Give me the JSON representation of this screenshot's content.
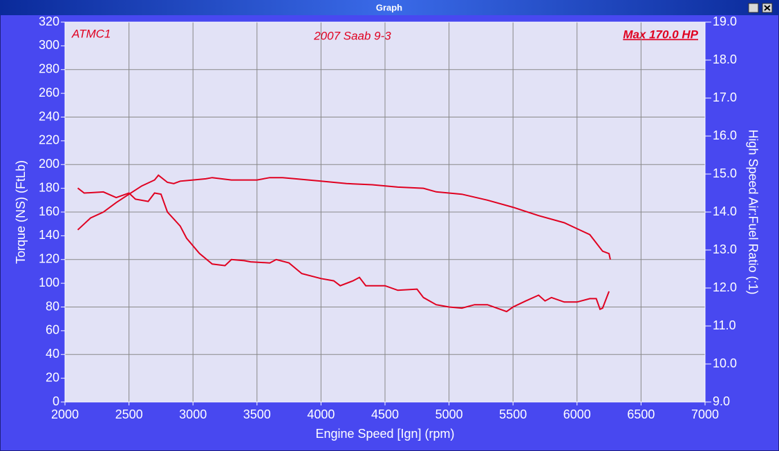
{
  "window": {
    "title": "Graph"
  },
  "chart_data": {
    "type": "line",
    "annotations": [
      "ATMC1",
      "2007 Saab 9-3",
      "Max 170.0 HP"
    ],
    "xlabel": "Engine Speed [Ign] (rpm)",
    "ylabel": "Torque (NS) (FtLb)",
    "y2label": "High Speed Air:Fuel Ratio (:1)",
    "xlim": [
      2000,
      7000
    ],
    "xticks": [
      2000,
      2500,
      3000,
      3500,
      4000,
      4500,
      5000,
      5500,
      6000,
      6500,
      7000
    ],
    "ylim": [
      0,
      320
    ],
    "yticks": [
      0,
      20,
      40,
      60,
      80,
      100,
      120,
      140,
      160,
      180,
      200,
      220,
      240,
      260,
      280,
      300,
      320
    ],
    "y2lim": [
      9,
      19
    ],
    "y2ticks": [
      {
        "value": 9,
        "label": "9.0"
      },
      {
        "value": 10,
        "label": "10.0"
      },
      {
        "value": 11,
        "label": "11.0"
      },
      {
        "value": 12,
        "label": "12.0"
      },
      {
        "value": 13,
        "label": "13.0"
      },
      {
        "value": 14,
        "label": "14.0"
      },
      {
        "value": 15,
        "label": "15.0"
      },
      {
        "value": 16,
        "label": "16.0"
      },
      {
        "value": 17,
        "label": "17.0"
      },
      {
        "value": 18,
        "label": "18.0"
      },
      {
        "value": 19,
        "label": "19.0"
      }
    ],
    "grid": true,
    "series": [
      {
        "color": "#e00020",
        "x": [
          2100,
          2150,
          2200,
          2300,
          2400,
          2500,
          2600,
          2700,
          2730,
          2800,
          2850,
          2900,
          3000,
          3100,
          3150,
          3300,
          3500,
          3600,
          3700,
          3800,
          4000,
          4200,
          4400,
          4600,
          4800,
          4900,
          5100,
          5300,
          5500,
          5700,
          5900,
          6000,
          6100,
          6150,
          6200,
          6250,
          6260
        ],
        "values": [
          145,
          150,
          155,
          160,
          168,
          175,
          182,
          187,
          191,
          185,
          184,
          186,
          187,
          188,
          189,
          187,
          187,
          189,
          189,
          188,
          186,
          184,
          183,
          181,
          180,
          177,
          175,
          170,
          164,
          157,
          151,
          146,
          141,
          134,
          127,
          125,
          120
        ]
      },
      {
        "color": "#e00020",
        "axis": "y2",
        "x": [
          2100,
          2150,
          2300,
          2400,
          2500,
          2550,
          2650,
          2700,
          2750,
          2800,
          2900,
          2950,
          3050,
          3150,
          3250,
          3300,
          3400,
          3450,
          3600,
          3650,
          3750,
          3850,
          4000,
          4100,
          4150,
          4250,
          4300,
          4350,
          4500,
          4600,
          4750,
          4800,
          4900,
          5000,
          5100,
          5200,
          5300,
          5400,
          5450,
          5500,
          5600,
          5700,
          5750,
          5800,
          5900,
          6000,
          6100,
          6150,
          6180,
          6200,
          6250
        ],
        "values": [
          14.63,
          14.5,
          14.53,
          14.38,
          14.5,
          14.34,
          14.28,
          14.5,
          14.47,
          14.0,
          13.63,
          13.31,
          12.91,
          12.63,
          12.59,
          12.75,
          12.72,
          12.69,
          12.66,
          12.75,
          12.66,
          12.38,
          12.25,
          12.19,
          12.06,
          12.19,
          12.28,
          12.06,
          12.06,
          11.94,
          11.97,
          11.75,
          11.56,
          11.5,
          11.47,
          11.56,
          11.56,
          11.44,
          11.38,
          11.5,
          11.66,
          11.81,
          11.66,
          11.75,
          11.63,
          11.63,
          11.72,
          11.72,
          11.44,
          11.47,
          11.91
        ]
      }
    ]
  }
}
